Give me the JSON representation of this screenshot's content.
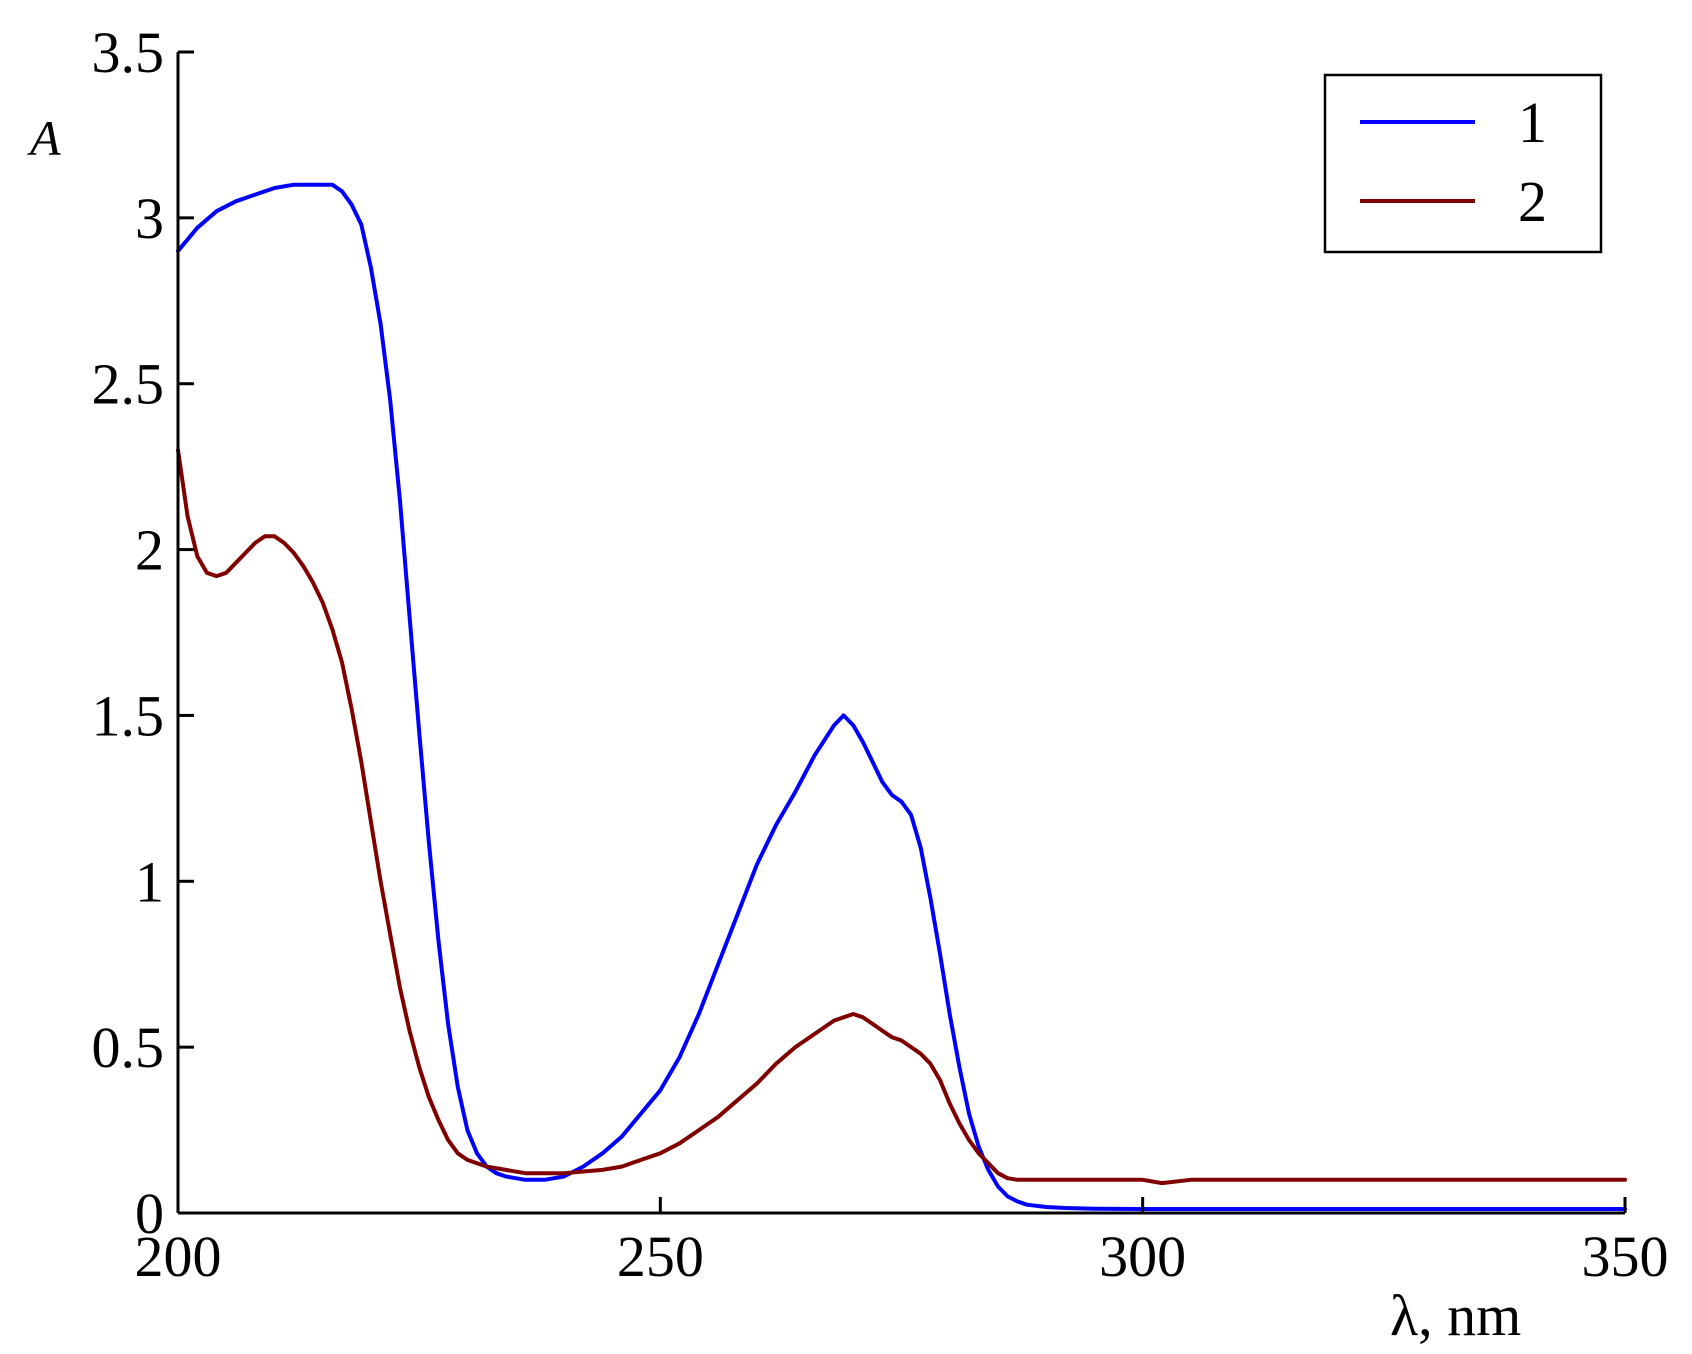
{
  "chart_data": {
    "type": "line",
    "title": "",
    "xlabel": "λ, nm",
    "ylabel": "A",
    "xlim": [
      200,
      350
    ],
    "ylim": [
      0,
      3.5
    ],
    "x_ticks": [
      200,
      250,
      300,
      350
    ],
    "x_tick_labels": [
      "200",
      "250",
      "300",
      "350"
    ],
    "y_ticks": [
      0,
      0.5,
      1,
      1.5,
      2,
      2.5,
      3,
      3.5
    ],
    "y_tick_labels": [
      "0",
      "0.5",
      "1",
      "1.5",
      "2",
      "2.5",
      "3",
      "3.5"
    ],
    "grid": false,
    "legend_position": "top-right",
    "series": [
      {
        "name": "1",
        "color": "#0000ff",
        "x": [
          200,
          202,
          204,
          206,
          208,
          210,
          212,
          214,
          216,
          217,
          218,
          219,
          220,
          221,
          222,
          223,
          224,
          225,
          226,
          227,
          228,
          229,
          230,
          231,
          232,
          233,
          234,
          235,
          236,
          237,
          238,
          239,
          240,
          242,
          244,
          246,
          248,
          250,
          252,
          254,
          256,
          258,
          260,
          262,
          264,
          266,
          268,
          269,
          270,
          271,
          272,
          273,
          274,
          275,
          276,
          277,
          278,
          279,
          280,
          281,
          282,
          283,
          284,
          285,
          286,
          287,
          288,
          290,
          292,
          295,
          300,
          310,
          320,
          330,
          340,
          350
        ],
        "y": [
          2.9,
          2.97,
          3.02,
          3.05,
          3.07,
          3.09,
          3.1,
          3.1,
          3.1,
          3.08,
          3.04,
          2.98,
          2.85,
          2.68,
          2.45,
          2.15,
          1.8,
          1.45,
          1.12,
          0.82,
          0.57,
          0.38,
          0.25,
          0.18,
          0.14,
          0.12,
          0.11,
          0.105,
          0.1,
          0.1,
          0.1,
          0.105,
          0.11,
          0.14,
          0.18,
          0.23,
          0.3,
          0.37,
          0.47,
          0.6,
          0.75,
          0.9,
          1.05,
          1.17,
          1.27,
          1.38,
          1.47,
          1.5,
          1.47,
          1.42,
          1.36,
          1.3,
          1.26,
          1.24,
          1.2,
          1.1,
          0.95,
          0.78,
          0.6,
          0.44,
          0.3,
          0.2,
          0.13,
          0.08,
          0.05,
          0.035,
          0.025,
          0.018,
          0.015,
          0.013,
          0.012,
          0.012,
          0.012,
          0.012,
          0.012,
          0.012
        ]
      },
      {
        "name": "2",
        "color": "#800000",
        "x": [
          200,
          201,
          202,
          203,
          204,
          205,
          206,
          207,
          208,
          209,
          210,
          211,
          212,
          213,
          214,
          215,
          216,
          217,
          218,
          219,
          220,
          221,
          222,
          223,
          224,
          225,
          226,
          227,
          228,
          229,
          230,
          232,
          234,
          236,
          238,
          240,
          242,
          244,
          246,
          248,
          250,
          252,
          254,
          256,
          258,
          260,
          262,
          264,
          266,
          268,
          270,
          271,
          272,
          273,
          274,
          275,
          276,
          277,
          278,
          279,
          280,
          281,
          282,
          283,
          284,
          285,
          286,
          287,
          288,
          290,
          295,
          300,
          302,
          305,
          310,
          320,
          330,
          340,
          350
        ],
        "y": [
          2.3,
          2.1,
          1.98,
          1.93,
          1.92,
          1.93,
          1.96,
          1.99,
          2.02,
          2.04,
          2.04,
          2.02,
          1.99,
          1.95,
          1.9,
          1.84,
          1.76,
          1.66,
          1.52,
          1.36,
          1.18,
          1.0,
          0.84,
          0.68,
          0.55,
          0.44,
          0.35,
          0.28,
          0.22,
          0.18,
          0.16,
          0.14,
          0.13,
          0.12,
          0.12,
          0.12,
          0.125,
          0.13,
          0.14,
          0.16,
          0.18,
          0.21,
          0.25,
          0.29,
          0.34,
          0.39,
          0.45,
          0.5,
          0.54,
          0.58,
          0.6,
          0.59,
          0.57,
          0.55,
          0.53,
          0.52,
          0.5,
          0.48,
          0.45,
          0.4,
          0.33,
          0.27,
          0.22,
          0.18,
          0.15,
          0.12,
          0.105,
          0.1,
          0.1,
          0.1,
          0.1,
          0.1,
          0.09,
          0.1,
          0.1,
          0.1,
          0.1,
          0.1,
          0.1
        ]
      }
    ]
  }
}
